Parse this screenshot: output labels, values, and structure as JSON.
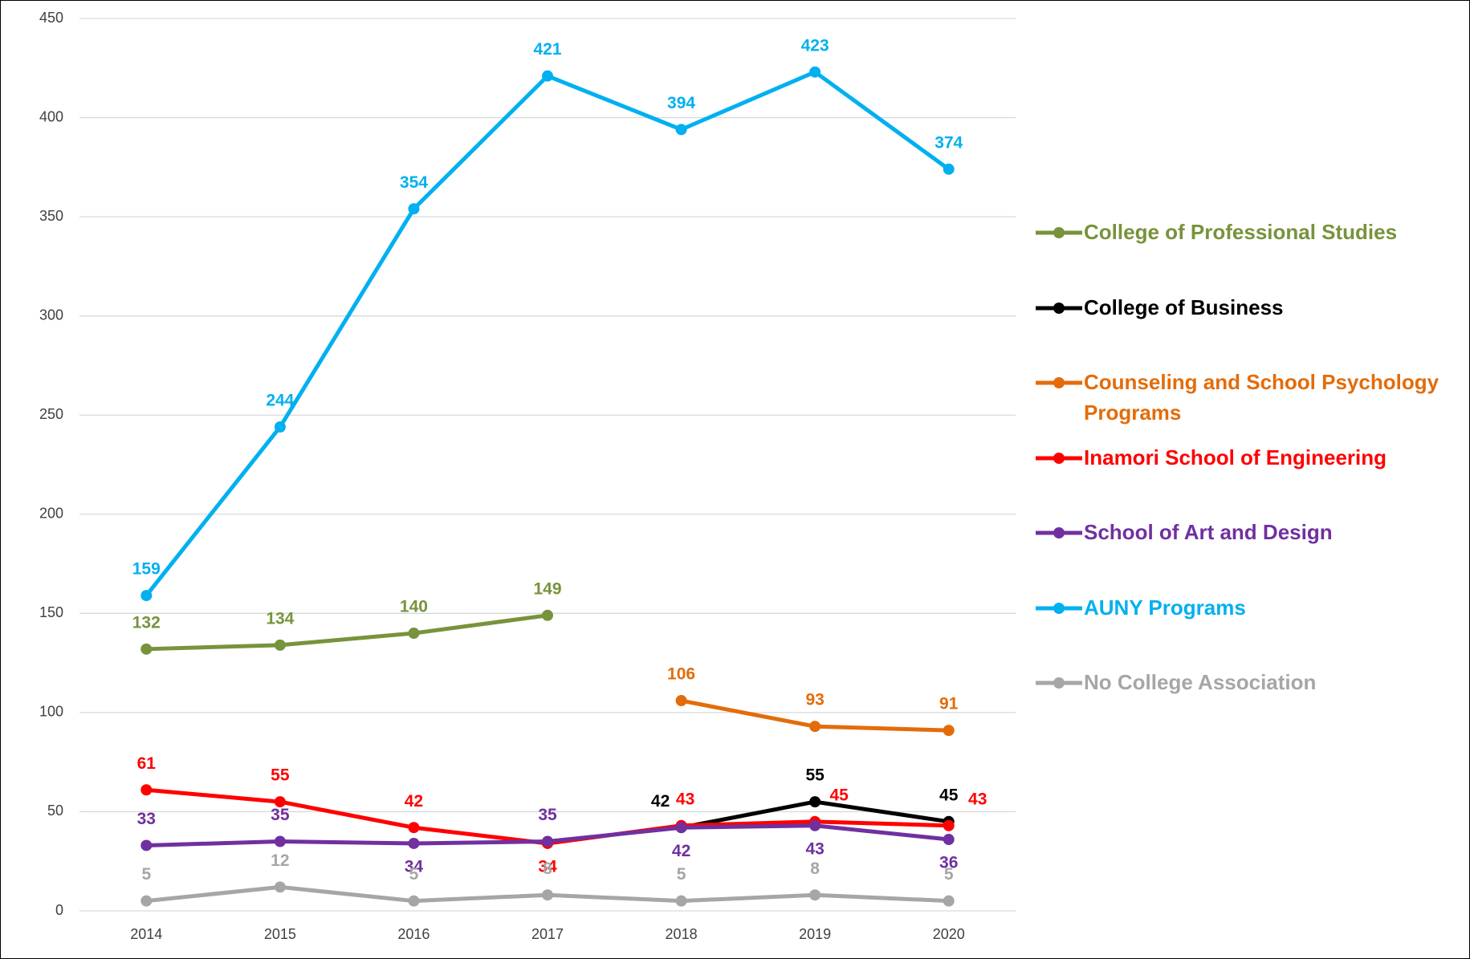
{
  "chart_data": {
    "type": "line",
    "categories": [
      "2014",
      "2015",
      "2016",
      "2017",
      "2018",
      "2019",
      "2020"
    ],
    "series": [
      {
        "name": "College of Professional Studies",
        "color": "#77933c",
        "values": [
          132,
          134,
          140,
          149,
          null,
          null,
          null
        ]
      },
      {
        "name": "College of Business",
        "color": "#000000",
        "values": [
          null,
          null,
          null,
          null,
          42,
          55,
          45
        ]
      },
      {
        "name": "Counseling and School Psychology Programs",
        "color": "#e36c0a",
        "values": [
          null,
          null,
          null,
          null,
          106,
          93,
          91
        ]
      },
      {
        "name": "Inamori School of Engineering",
        "color": "#ff0000",
        "values": [
          61,
          55,
          42,
          34,
          43,
          45,
          43
        ]
      },
      {
        "name": "School of Art and Design",
        "color": "#7030a0",
        "values": [
          33,
          35,
          34,
          35,
          42,
          43,
          36
        ]
      },
      {
        "name": "AUNY Programs",
        "color": "#00b0f0",
        "values": [
          159,
          244,
          354,
          421,
          394,
          423,
          374
        ]
      },
      {
        "name": "No College Association",
        "color": "#a6a6a6",
        "values": [
          5,
          12,
          5,
          8,
          5,
          8,
          5
        ]
      }
    ],
    "ylim": [
      0,
      450
    ],
    "yticks": [
      0,
      50,
      100,
      150,
      200,
      250,
      300,
      350,
      400,
      450
    ],
    "grid": true,
    "legend": "right"
  }
}
